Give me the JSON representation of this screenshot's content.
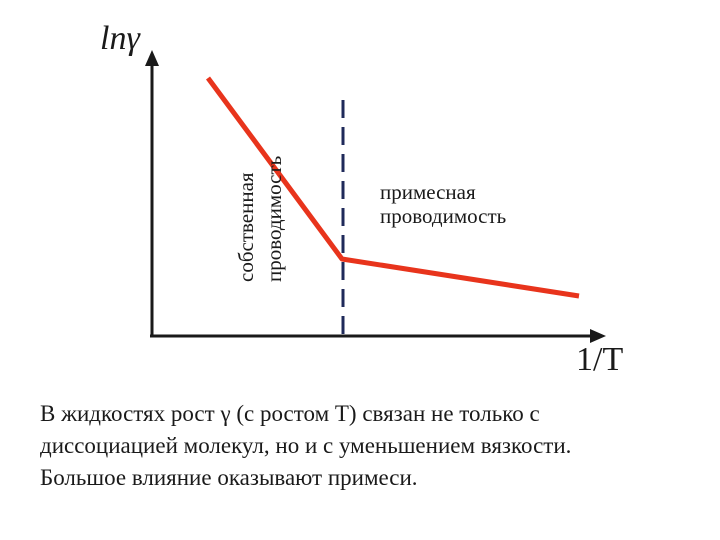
{
  "diagram": {
    "y_axis_label": "lnγ",
    "x_axis_label": "1/T",
    "intrinsic_label": [
      "собственная",
      "проводимость"
    ],
    "impurity_label": [
      "примесная",
      "проводимость"
    ],
    "line_color": "#e8341c",
    "divider_color": "#1f2a5a"
  },
  "caption": {
    "lines": [
      "В жидкостях рост γ (с ростом T) связан не только с",
      "диссоциацией молекул, но и с уменьшением вязкости.",
      "Большое влияние оказывают примеси."
    ]
  }
}
